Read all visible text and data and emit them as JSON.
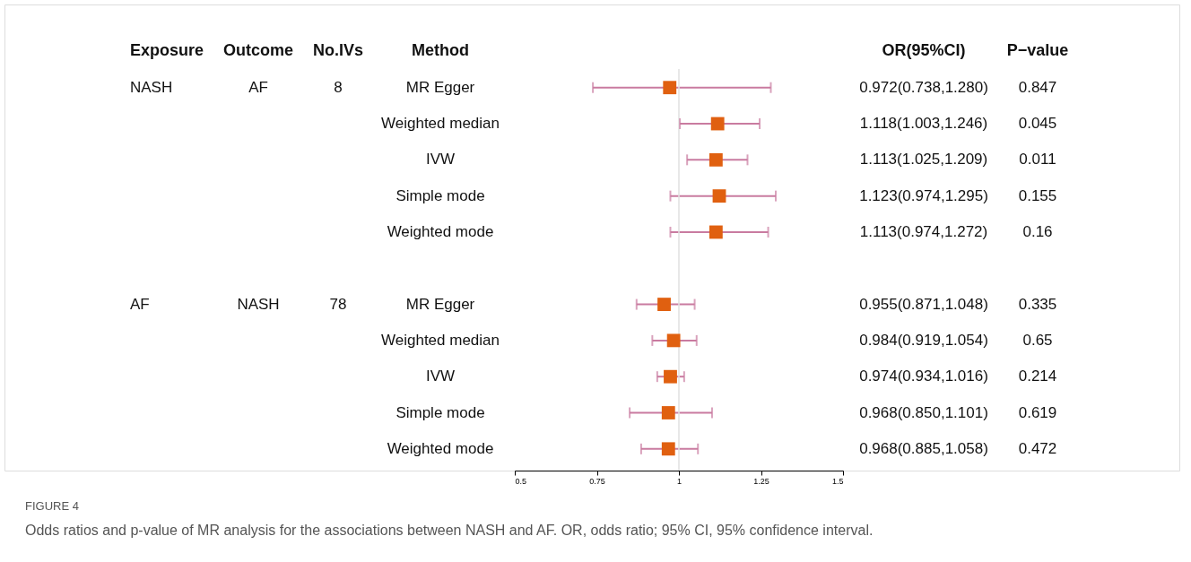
{
  "chart_data": {
    "type": "scatter",
    "orientation": "horizontal",
    "marker": "square",
    "grid": false,
    "legend": false,
    "categories": [
      "MR Egger",
      "Weighted median",
      "IVW",
      "Simple mode",
      "Weighted mode",
      "MR Egger",
      "Weighted median",
      "IVW",
      "Simple mode",
      "Weighted mode"
    ],
    "series": [
      {
        "color": "#e06010",
        "values": [
          0.972,
          1.118,
          1.113,
          1.123,
          1.113,
          0.955,
          0.984,
          0.974,
          0.968,
          0.968
        ],
        "errors": [
          [
            0.738,
            1.28
          ],
          [
            1.003,
            1.246
          ],
          [
            1.025,
            1.209
          ],
          [
            0.974,
            1.295
          ],
          [
            0.974,
            1.272
          ],
          [
            0.871,
            1.048
          ],
          [
            0.919,
            1.054
          ],
          [
            0.934,
            1.016
          ],
          [
            0.85,
            1.101
          ],
          [
            0.885,
            1.058
          ]
        ],
        "value_labels": [
          "0.972(0.738,1.280)",
          "1.118(1.003,1.246)",
          "1.113(1.025,1.209)",
          "1.123(0.974,1.295)",
          "1.113(0.974,1.272)",
          "0.955(0.871,1.048)",
          "0.984(0.919,1.054)",
          "0.974(0.934,1.016)",
          "0.968(0.850,1.101)",
          "0.968(0.885,1.058)"
        ]
      }
    ],
    "xlim": [
      0.5,
      1.5
    ],
    "xticks": [
      0.5,
      0.75,
      1,
      1.25,
      1.5
    ],
    "ref_lines": [
      {
        "axis": "x",
        "value": 1,
        "color": "#e0e0e0"
      }
    ],
    "annotations": [
      "Exposure",
      "Outcome",
      "No.IVs",
      "Method",
      "OR(95%CI)",
      "P−value",
      "NASH",
      "AF",
      "8",
      "AF",
      "NASH",
      "78",
      "0.847",
      "0.045",
      "0.011",
      "0.155",
      "0.16",
      "0.335",
      "0.65",
      "0.214",
      "0.619",
      "0.472",
      "FIGURE 4",
      "Odds ratios and p-value of MR analysis for the associations between NASH and AF. OR, odds ratio; 95% CI, 95% confidence interval."
    ]
  }
}
